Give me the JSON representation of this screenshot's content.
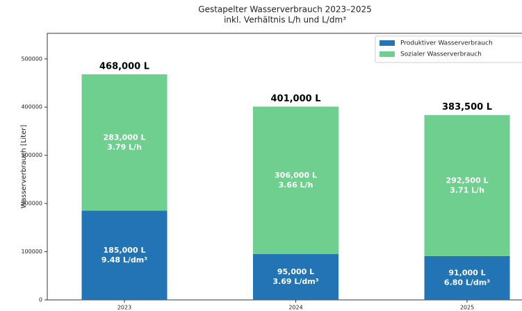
{
  "chart_data": {
    "type": "stacked_bar",
    "title": "Gestapelter Wasserverbrauch 2023–2025",
    "subtitle": "inkl. Verhältnis L/h und L/dm³",
    "y_label": "Wasserverbrauch [Liter]",
    "categories": [
      "2023",
      "2024",
      "2025"
    ],
    "series": [
      {
        "name": "Produktiver Wasserverbrauch",
        "color": "#2274b5",
        "values": [
          185000,
          95000,
          91000
        ],
        "value_labels": [
          "185,000 L",
          "95,000 L",
          "91,000 L"
        ],
        "ratio_labels": [
          "9.48 L/dm³",
          "3.69 L/dm³",
          "6.80 L/dm³"
        ]
      },
      {
        "name": "Sozialer Wasserverbrauch",
        "color": "#6fcf8f",
        "values": [
          283000,
          306000,
          292500
        ],
        "value_labels": [
          "283,000 L",
          "306,000 L",
          "292,500 L"
        ],
        "ratio_labels": [
          "3.79 L/h",
          "3.66 L/h",
          "3.71 L/h"
        ]
      }
    ],
    "total_labels": [
      "468,000 L",
      "401,000 L",
      "383,500 L"
    ],
    "ylim": [
      0,
      553000
    ],
    "yticks": [
      0,
      100000,
      200000,
      300000,
      400000,
      500000
    ],
    "legend": "upper right"
  }
}
